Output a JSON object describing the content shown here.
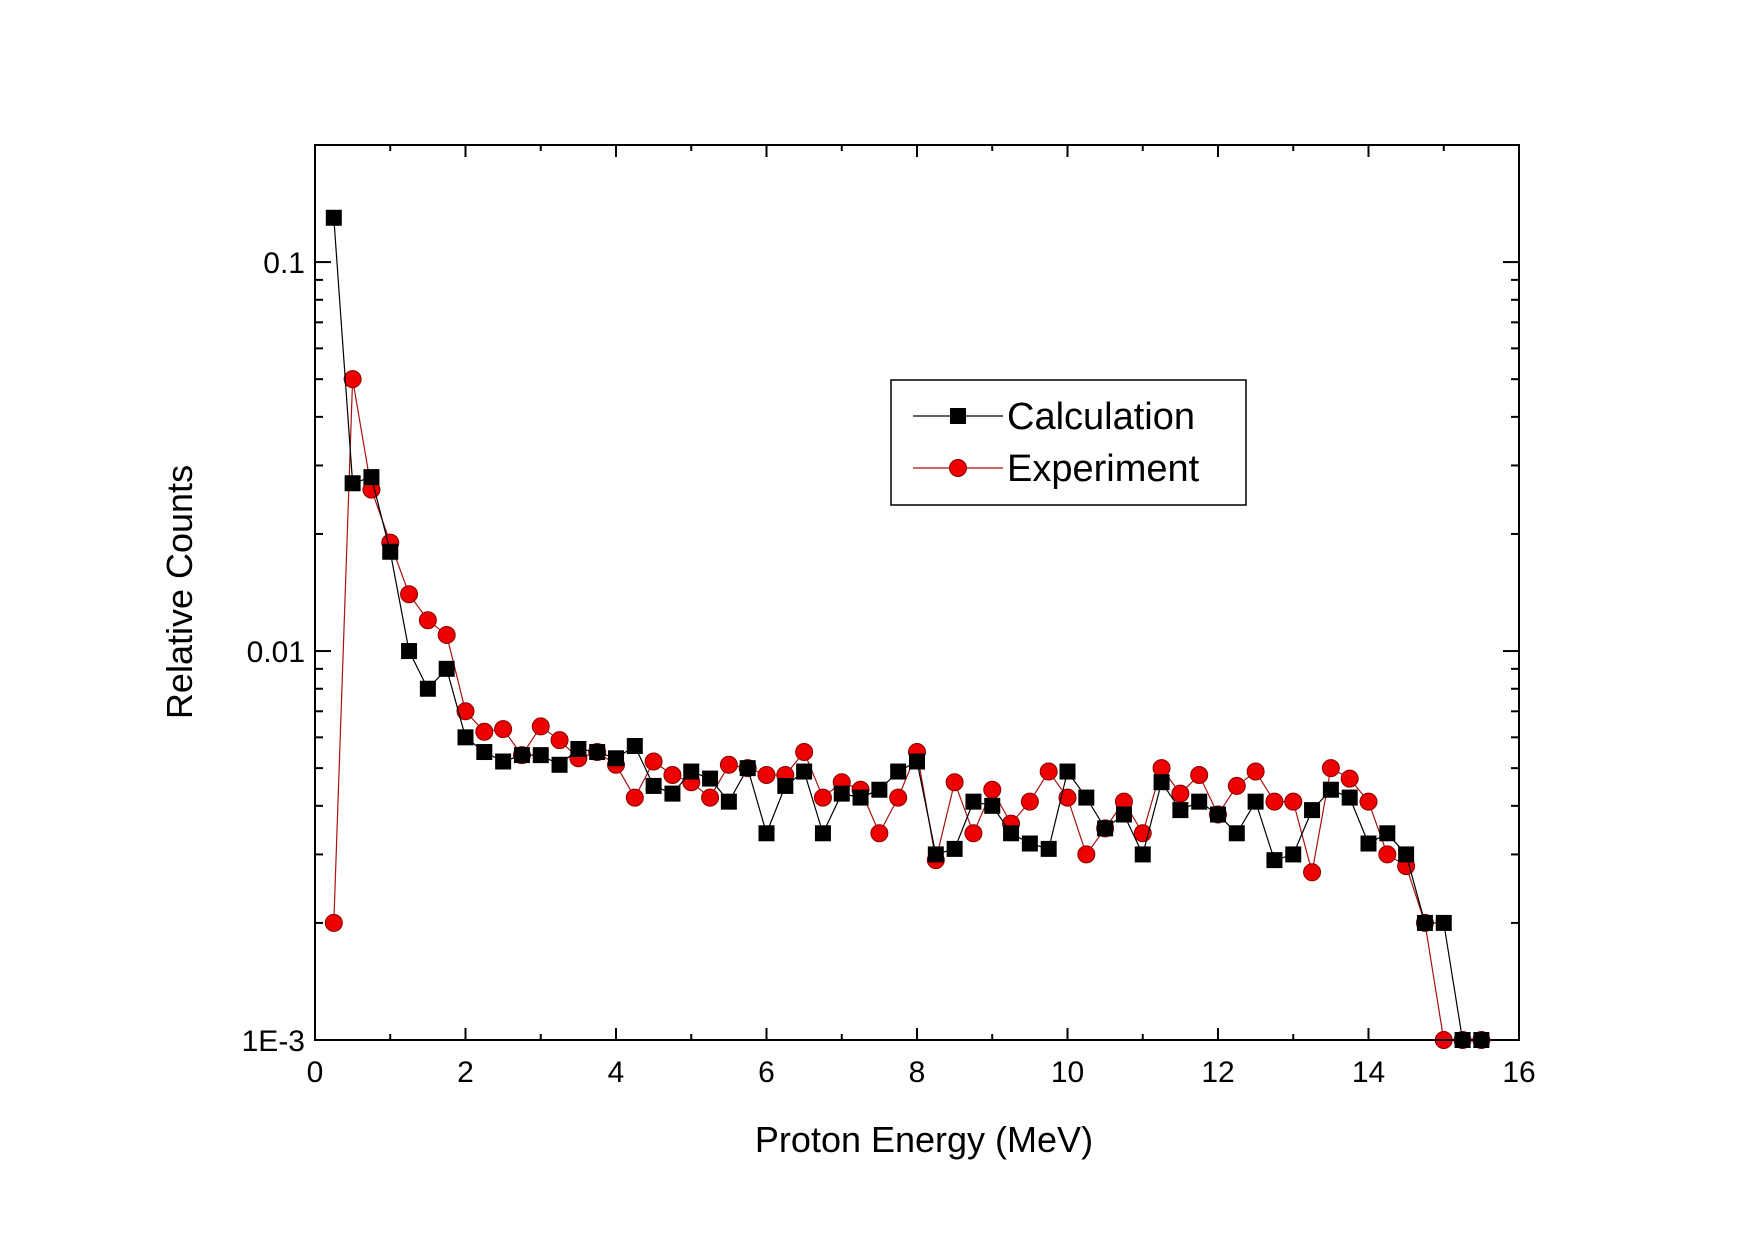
{
  "chart_data": {
    "type": "scatter",
    "title": "",
    "xlabel": "Proton Energy (MeV)",
    "ylabel": "Relative Counts",
    "xlim": [
      0,
      16
    ],
    "ylim": [
      0.001,
      0.2
    ],
    "yscale": "log",
    "grid": false,
    "legend_position": "top-right",
    "x_ticks": [
      0,
      2,
      4,
      6,
      8,
      10,
      12,
      14,
      16
    ],
    "x_tick_labels": [
      "0",
      "2",
      "4",
      "6",
      "8",
      "10",
      "12",
      "14",
      "16"
    ],
    "y_ticks": [
      0.001,
      0.01,
      0.1
    ],
    "y_tick_labels": [
      "1E-3",
      "0.01",
      "0.1"
    ],
    "x": [
      0.25,
      0.5,
      0.75,
      1.0,
      1.25,
      1.5,
      1.75,
      2.0,
      2.25,
      2.5,
      2.75,
      3.0,
      3.25,
      3.5,
      3.75,
      4.0,
      4.25,
      4.5,
      4.75,
      5.0,
      5.25,
      5.5,
      5.75,
      6.0,
      6.25,
      6.5,
      6.75,
      7.0,
      7.25,
      7.5,
      7.75,
      8.0,
      8.25,
      8.5,
      8.75,
      9.0,
      9.25,
      9.5,
      9.75,
      10.0,
      10.25,
      10.5,
      10.75,
      11.0,
      11.25,
      11.5,
      11.75,
      12.0,
      12.25,
      12.5,
      12.75,
      13.0,
      13.25,
      13.5,
      13.75,
      14.0,
      14.25,
      14.5,
      14.75,
      15.0,
      15.25,
      15.5
    ],
    "series": [
      {
        "name": "Calculation",
        "marker": "square",
        "color": "#000000",
        "line_color": "#000000",
        "values": [
          0.13,
          0.027,
          0.028,
          0.018,
          0.01,
          0.008,
          0.009,
          0.006,
          0.0055,
          0.0052,
          0.0054,
          0.0054,
          0.0051,
          0.0056,
          0.0055,
          0.0053,
          0.0057,
          0.0045,
          0.0043,
          0.0049,
          0.0047,
          0.0041,
          0.005,
          0.0034,
          0.0045,
          0.0049,
          0.0034,
          0.0043,
          0.0042,
          0.0044,
          0.0049,
          0.0052,
          0.003,
          0.0031,
          0.0041,
          0.004,
          0.0034,
          0.0032,
          0.0031,
          0.0049,
          0.0042,
          0.0035,
          0.0038,
          0.003,
          0.0046,
          0.0039,
          0.0041,
          0.0038,
          0.0034,
          0.0041,
          0.0029,
          0.003,
          0.0039,
          0.0044,
          0.0042,
          0.0032,
          0.0034,
          0.003,
          0.002,
          0.002,
          0.001,
          0.001
        ]
      },
      {
        "name": "Experiment",
        "marker": "circle",
        "color": "#ee0000",
        "line_color": "#aa1111",
        "values": [
          0.002,
          0.05,
          0.026,
          0.019,
          0.014,
          0.012,
          0.011,
          0.007,
          0.0062,
          0.0063,
          0.0054,
          0.0064,
          0.0059,
          0.0053,
          0.0055,
          0.0051,
          0.0042,
          0.0052,
          0.0048,
          0.0046,
          0.0042,
          0.0051,
          0.005,
          0.0048,
          0.0048,
          0.0055,
          0.0042,
          0.0046,
          0.0044,
          0.0034,
          0.0042,
          0.0055,
          0.0029,
          0.0046,
          0.0034,
          0.0044,
          0.0036,
          0.0041,
          0.0049,
          0.0042,
          0.003,
          0.0035,
          0.0041,
          0.0034,
          0.005,
          0.0043,
          0.0048,
          0.0038,
          0.0045,
          0.0049,
          0.0041,
          0.0041,
          0.0027,
          0.005,
          0.0047,
          0.0041,
          0.003,
          0.0028,
          0.002,
          0.001,
          0.001,
          0.001
        ]
      }
    ]
  }
}
